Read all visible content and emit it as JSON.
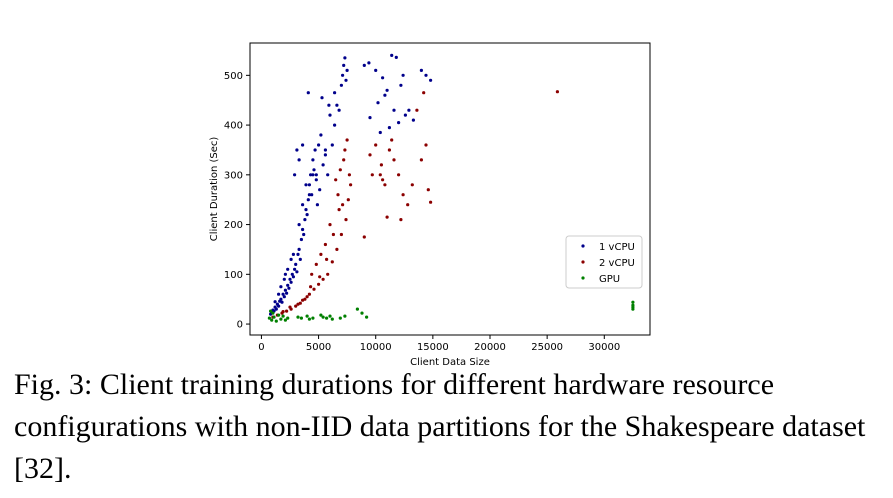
{
  "chart_data": {
    "type": "scatter",
    "title": "",
    "xlabel": "Client Data Size",
    "ylabel": "Client Duration (Sec)",
    "xlim": [
      -1000,
      34000
    ],
    "ylim": [
      -22,
      565
    ],
    "xticks": [
      0,
      5000,
      10000,
      15000,
      20000,
      25000,
      30000
    ],
    "yticks": [
      0,
      100,
      200,
      300,
      400,
      500
    ],
    "grid": false,
    "legend": "center-right",
    "series": [
      {
        "name": "1 vCPU",
        "color": "#00008b",
        "points": [
          [
            800,
            20
          ],
          [
            900,
            24
          ],
          [
            1000,
            28
          ],
          [
            1100,
            26
          ],
          [
            1200,
            34
          ],
          [
            1300,
            30
          ],
          [
            1400,
            40
          ],
          [
            1500,
            36
          ],
          [
            1600,
            46
          ],
          [
            1700,
            50
          ],
          [
            1800,
            44
          ],
          [
            1900,
            60
          ],
          [
            2000,
            55
          ],
          [
            2100,
            68
          ],
          [
            2200,
            62
          ],
          [
            2300,
            78
          ],
          [
            2400,
            72
          ],
          [
            2500,
            90
          ],
          [
            2600,
            84
          ],
          [
            2700,
            100
          ],
          [
            2800,
            95
          ],
          [
            2900,
            110
          ],
          [
            3000,
            120
          ],
          [
            3100,
            105
          ],
          [
            3200,
            140
          ],
          [
            3300,
            150
          ],
          [
            3400,
            130
          ],
          [
            3500,
            170
          ],
          [
            3600,
            190
          ],
          [
            3700,
            180
          ],
          [
            3800,
            210
          ],
          [
            3900,
            230
          ],
          [
            4000,
            220
          ],
          [
            4100,
            250
          ],
          [
            4200,
            280
          ],
          [
            4300,
            300
          ],
          [
            4400,
            260
          ],
          [
            4500,
            330
          ],
          [
            4600,
            310
          ],
          [
            4700,
            350
          ],
          [
            4800,
            290
          ],
          [
            4900,
            240
          ],
          [
            5000,
            360
          ],
          [
            5100,
            270
          ],
          [
            5200,
            380
          ],
          [
            5400,
            320
          ],
          [
            5600,
            340
          ],
          [
            5800,
            300
          ],
          [
            6000,
            420
          ],
          [
            6200,
            360
          ],
          [
            6400,
            400
          ],
          [
            6600,
            440
          ],
          [
            6800,
            430
          ],
          [
            7000,
            480
          ],
          [
            7100,
            500
          ],
          [
            7200,
            520
          ],
          [
            7300,
            535
          ],
          [
            7400,
            490
          ],
          [
            7500,
            510
          ],
          [
            3100,
            350
          ],
          [
            3300,
            330
          ],
          [
            2900,
            300
          ],
          [
            3600,
            360
          ],
          [
            4100,
            465
          ],
          [
            5300,
            455
          ],
          [
            5900,
            440
          ],
          [
            6400,
            465
          ],
          [
            1500,
            60
          ],
          [
            2000,
            90
          ],
          [
            2300,
            110
          ],
          [
            2600,
            130
          ],
          [
            1200,
            45
          ],
          [
            1700,
            75
          ],
          [
            2100,
            100
          ],
          [
            2800,
            140
          ],
          [
            3300,
            200
          ],
          [
            3600,
            240
          ],
          [
            4200,
            260
          ],
          [
            4800,
            300
          ],
          [
            5600,
            350
          ],
          [
            3900,
            280
          ],
          [
            4500,
            300
          ],
          [
            9000,
            520
          ],
          [
            9400,
            525
          ],
          [
            10000,
            510
          ],
          [
            10600,
            495
          ],
          [
            11000,
            470
          ],
          [
            11400,
            540
          ],
          [
            11800,
            536
          ],
          [
            12200,
            480
          ],
          [
            12600,
            420
          ],
          [
            12900,
            430
          ],
          [
            13300,
            410
          ],
          [
            14000,
            510
          ],
          [
            14400,
            500
          ],
          [
            14800,
            490
          ],
          [
            10200,
            445
          ],
          [
            10800,
            460
          ],
          [
            11600,
            430
          ],
          [
            12000,
            405
          ],
          [
            9500,
            415
          ],
          [
            10400,
            385
          ],
          [
            11200,
            395
          ],
          [
            12400,
            500
          ]
        ]
      },
      {
        "name": "2 vCPU",
        "color": "#8b0000",
        "points": [
          [
            1000,
            14
          ],
          [
            1400,
            18
          ],
          [
            1800,
            22
          ],
          [
            2200,
            26
          ],
          [
            2600,
            30
          ],
          [
            3000,
            36
          ],
          [
            3400,
            42
          ],
          [
            3800,
            50
          ],
          [
            4200,
            60
          ],
          [
            4600,
            70
          ],
          [
            5000,
            80
          ],
          [
            5400,
            90
          ],
          [
            5800,
            100
          ],
          [
            6200,
            125
          ],
          [
            6600,
            150
          ],
          [
            7000,
            180
          ],
          [
            7400,
            210
          ],
          [
            7600,
            250
          ],
          [
            7800,
            280
          ],
          [
            6800,
            230
          ],
          [
            6000,
            200
          ],
          [
            5600,
            160
          ],
          [
            5200,
            140
          ],
          [
            4800,
            120
          ],
          [
            4400,
            100
          ],
          [
            7200,
            330
          ],
          [
            7500,
            370
          ],
          [
            6900,
            310
          ],
          [
            6500,
            290
          ],
          [
            7700,
            300
          ],
          [
            9000,
            175
          ],
          [
            9500,
            340
          ],
          [
            10000,
            360
          ],
          [
            10400,
            300
          ],
          [
            10800,
            280
          ],
          [
            11200,
            350
          ],
          [
            11600,
            330
          ],
          [
            12000,
            300
          ],
          [
            12400,
            260
          ],
          [
            12800,
            240
          ],
          [
            13200,
            280
          ],
          [
            14000,
            330
          ],
          [
            14400,
            360
          ],
          [
            14600,
            270
          ],
          [
            14800,
            245
          ],
          [
            10600,
            290
          ],
          [
            11000,
            215
          ],
          [
            12200,
            210
          ],
          [
            25900,
            467
          ],
          [
            3200,
            40
          ],
          [
            2500,
            34
          ],
          [
            1900,
            25
          ],
          [
            3600,
            48
          ],
          [
            4000,
            55
          ],
          [
            4300,
            75
          ],
          [
            5100,
            95
          ],
          [
            5700,
            130
          ],
          [
            6300,
            180
          ],
          [
            6700,
            260
          ],
          [
            7100,
            240
          ],
          [
            7300,
            350
          ],
          [
            9700,
            300
          ],
          [
            10500,
            320
          ],
          [
            11400,
            370
          ],
          [
            13600,
            430
          ],
          [
            14200,
            465
          ]
        ]
      },
      {
        "name": "GPU",
        "color": "#008000",
        "points": [
          [
            700,
            12
          ],
          [
            900,
            8
          ],
          [
            1100,
            14
          ],
          [
            1300,
            6
          ],
          [
            1500,
            18
          ],
          [
            1700,
            10
          ],
          [
            1900,
            16
          ],
          [
            2100,
            8
          ],
          [
            2300,
            12
          ],
          [
            3200,
            14
          ],
          [
            3500,
            12
          ],
          [
            4000,
            16
          ],
          [
            4200,
            10
          ],
          [
            4500,
            12
          ],
          [
            5200,
            18
          ],
          [
            5400,
            14
          ],
          [
            5700,
            12
          ],
          [
            6000,
            16
          ],
          [
            6200,
            10
          ],
          [
            6900,
            12
          ],
          [
            7300,
            16
          ],
          [
            8400,
            30
          ],
          [
            8800,
            22
          ],
          [
            9200,
            14
          ],
          [
            800,
            26
          ],
          [
            1000,
            22
          ],
          [
            32500,
            44
          ],
          [
            32500,
            38
          ],
          [
            32500,
            34
          ],
          [
            32500,
            30
          ]
        ]
      }
    ]
  },
  "caption": "Fig. 3: Client training durations for different hardware resource configurations with non-IID data partitions for the Shakespeare dataset [32]."
}
